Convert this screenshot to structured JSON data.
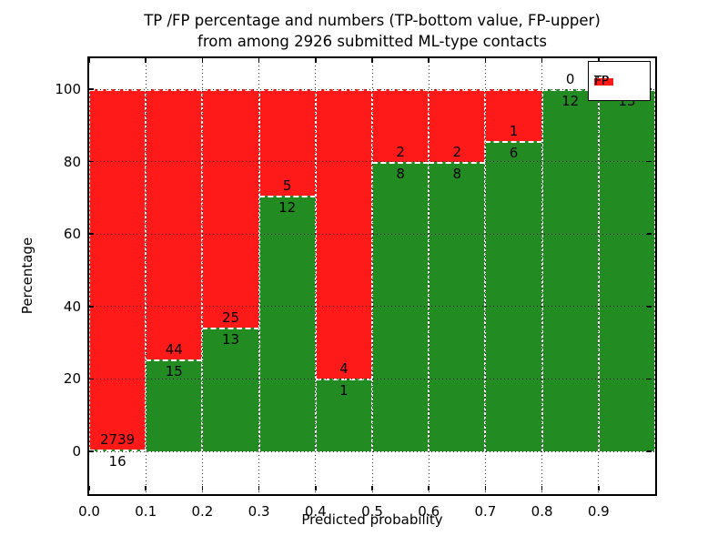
{
  "title": {
    "line1": "TP /FP percentage and numbers (TP-bottom value, FP-upper)",
    "line2": "from among 2926 submitted ML-type contacts"
  },
  "axes": {
    "xlabel": "Predicted probability",
    "ylabel": "Percentage"
  },
  "chart_data": {
    "type": "bar",
    "subtype": "stacked-percentage-histogram",
    "title": "TP /FP percentage and numbers (TP-bottom value, FP-upper) from among 2926 submitted ML-type contacts",
    "xlabel": "Predicted probability",
    "ylabel": "Percentage",
    "total_contacts": 2926,
    "bin_starts": [
      0.0,
      0.1,
      0.2,
      0.3,
      0.4,
      0.5,
      0.6,
      0.7,
      0.8,
      0.9
    ],
    "bin_width": 0.1,
    "series": [
      {
        "name": "TP",
        "color": "#228b22",
        "values": [
          16,
          15,
          13,
          12,
          1,
          8,
          8,
          6,
          12,
          13
        ]
      },
      {
        "name": "FP",
        "color": "#ff1a1a",
        "values": [
          2739,
          44,
          25,
          5,
          4,
          2,
          2,
          1,
          0,
          0
        ]
      }
    ],
    "bar_label_rule": "FP count shown above TP/FP boundary, TP count shown below boundary",
    "xticks": [
      "0.0",
      "0.1",
      "0.2",
      "0.3",
      "0.4",
      "0.5",
      "0.6",
      "0.7",
      "0.8",
      "0.9"
    ],
    "yticks": [
      0,
      20,
      40,
      60,
      80,
      100
    ],
    "xlim": [
      0.0,
      1.0
    ],
    "ylim": [
      -12.4,
      109.3
    ],
    "grid": true,
    "grid_style": "dotted-black",
    "bar_edge_style": "dashed-white",
    "legend": {
      "position": "upper right",
      "entries": [
        {
          "label": "TP",
          "color": "#228b22"
        },
        {
          "label": "FP",
          "color": "#ff1a1a"
        }
      ]
    }
  }
}
